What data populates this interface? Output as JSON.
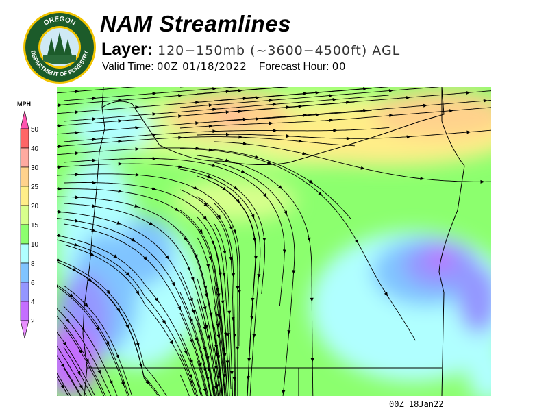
{
  "header": {
    "title": "NAM Streamlines",
    "layer_label": "Layer:",
    "layer_value": "120−150mb (~3600−4500ft) AGL",
    "valid_label": "Valid Time:",
    "valid_value": "00Z 01/18/2022",
    "forecast_label": "Forecast Hour:",
    "forecast_value": "00"
  },
  "logo": {
    "text_top": "OREGON",
    "text_bottom": "DEPARTMENT OF FORESTRY"
  },
  "legend": {
    "unit": "MPH",
    "ticks": [
      "50",
      "40",
      "30",
      "25",
      "20",
      "15",
      "10",
      "8",
      "6",
      "4",
      "2"
    ],
    "colors": [
      "#ff6666",
      "#ffaaa0",
      "#ffd28c",
      "#ffee88",
      "#d8ff8c",
      "#8cff6e",
      "#b0ffff",
      "#80c4ff",
      "#9496ff",
      "#c46eff"
    ],
    "over_color": "#ff55b0",
    "under_color": "#e890ff"
  },
  "footer": {
    "stamp": "00Z 18Jan22"
  }
}
